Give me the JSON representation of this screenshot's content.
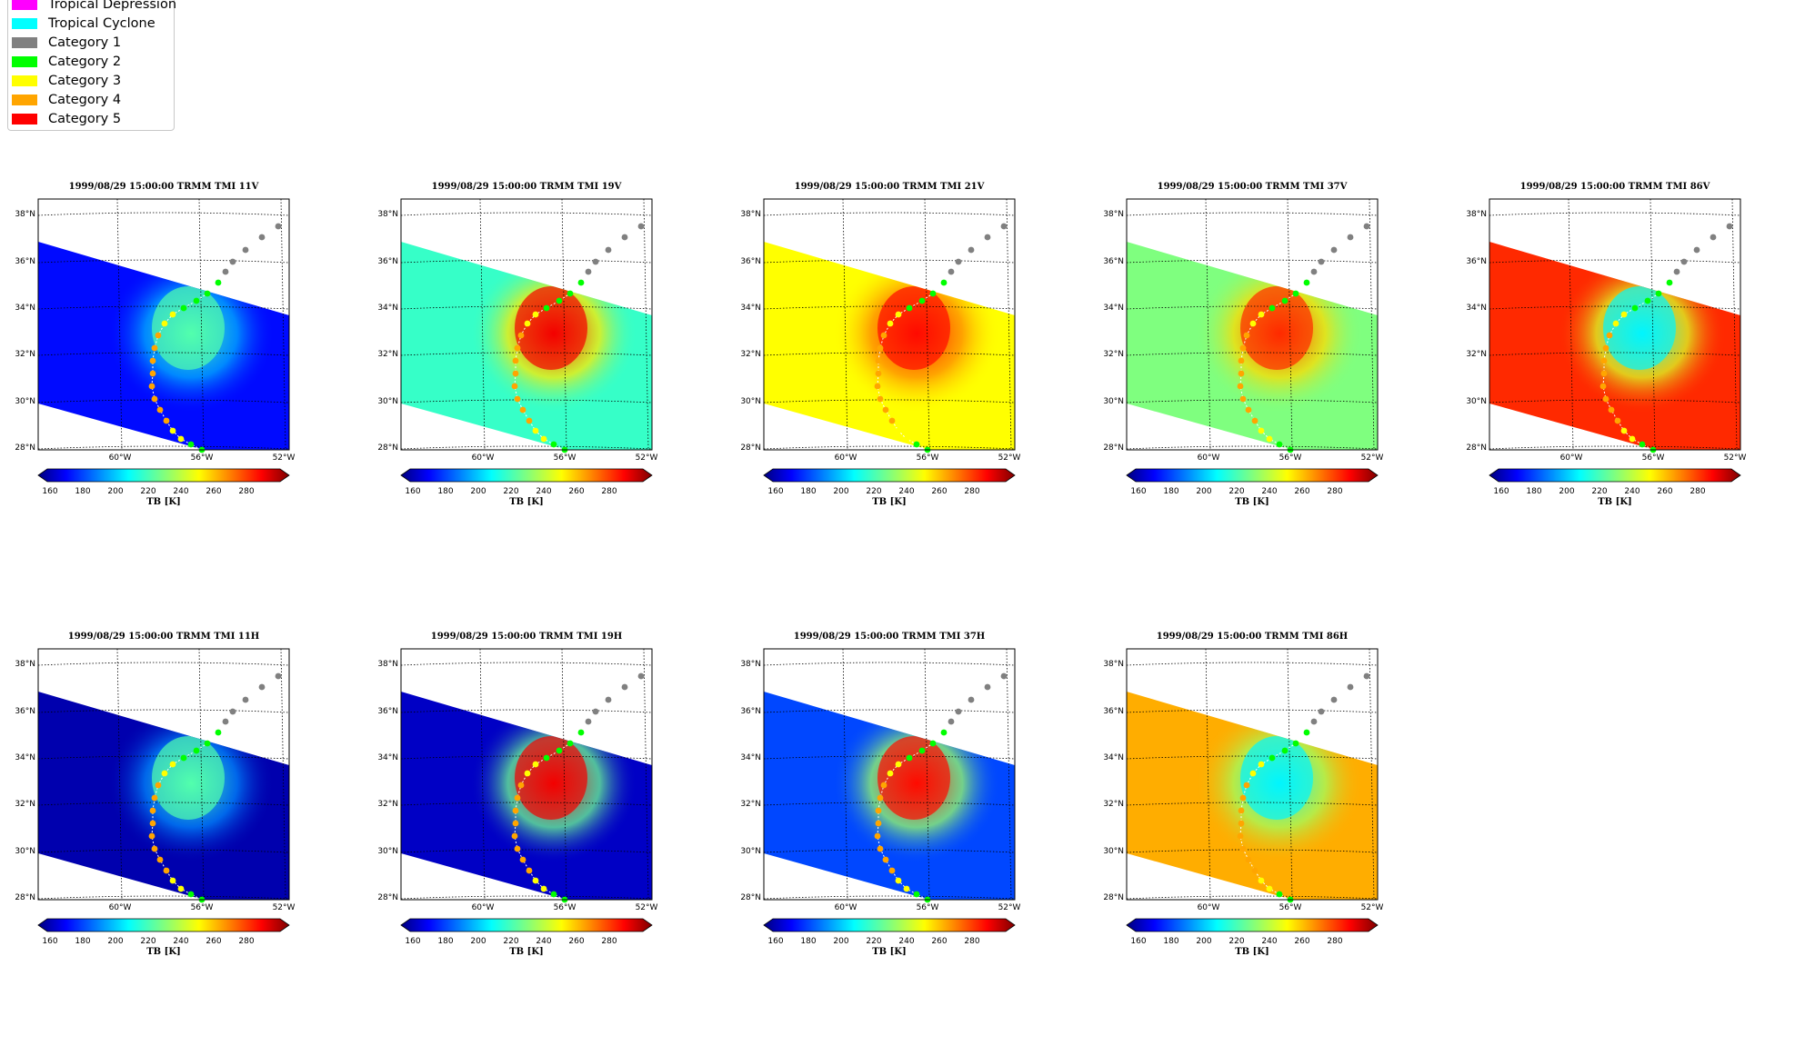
{
  "legend": [
    {
      "label": "Tropical Depression",
      "color": "#ff00ff"
    },
    {
      "label": "Tropical Cyclone",
      "color": "#00ffff"
    },
    {
      "label": "Category 1",
      "color": "#808080"
    },
    {
      "label": "Category 2",
      "color": "#00ff00"
    },
    {
      "label": "Category 3",
      "color": "#ffff00"
    },
    {
      "label": "Category 4",
      "color": "#ffa500"
    },
    {
      "label": "Category 5",
      "color": "#ff0000"
    }
  ],
  "panels": [
    {
      "title": "1999/08/29 15:00:00  TRMM TMI 11V",
      "level": 0.12,
      "eye": 0.45
    },
    {
      "title": "1999/08/29 15:00:00  TRMM TMI 19V",
      "level": 0.42,
      "eye": 0.9
    },
    {
      "title": "1999/08/29 15:00:00  TRMM TMI 21V",
      "level": 0.64,
      "eye": 0.88
    },
    {
      "title": "1999/08/29 15:00:00  TRMM TMI 37V",
      "level": 0.5,
      "eye": 0.85
    },
    {
      "title": "1999/08/29 15:00:00  TRMM TMI 86V",
      "level": 0.85,
      "eye": 0.35
    },
    {
      "title": "1999/08/29 15:00:00  TRMM TMI 11H",
      "level": 0.04,
      "eye": 0.45
    },
    {
      "title": "1999/08/29 15:00:00  TRMM TMI 19H",
      "level": 0.06,
      "eye": 0.9
    },
    {
      "title": "1999/08/29 15:00:00  TRMM TMI 37H",
      "level": 0.18,
      "eye": 0.88
    },
    {
      "title": "1999/08/29 15:00:00  TRMM TMI 86H",
      "level": 0.72,
      "eye": 0.35
    }
  ],
  "lat_labels": [
    "38°N",
    "36°N",
    "34°N",
    "32°N",
    "30°N",
    "28°N"
  ],
  "lon_labels": [
    "60°W",
    "56°W",
    "52°W"
  ],
  "colorbar": {
    "ticks": [
      "160",
      "180",
      "200",
      "220",
      "240",
      "260",
      "280"
    ],
    "label": "TB [K]"
  }
}
